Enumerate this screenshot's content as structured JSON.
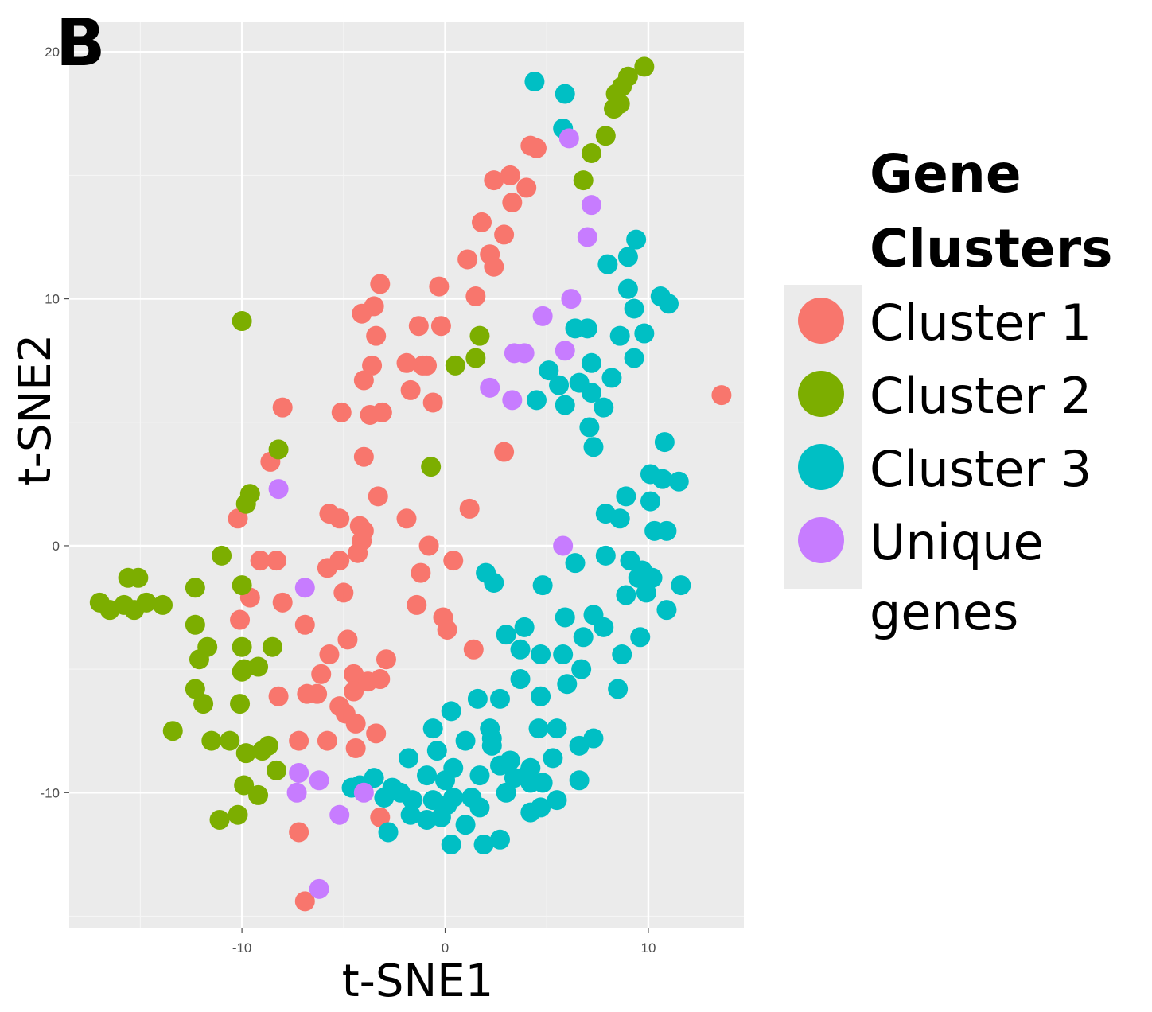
{
  "panel_label": "B",
  "chart_data": {
    "type": "scatter",
    "title": "",
    "xlabel": "t-SNE1",
    "ylabel": "t-SNE2",
    "xlim": [
      -18.5,
      14.7
    ],
    "ylim": [
      -15.5,
      21.2
    ],
    "xticks": [
      -10,
      0,
      10
    ],
    "yticks": [
      -10,
      0,
      10,
      20
    ],
    "xtick_labels": [
      "-10",
      "0",
      "10"
    ],
    "ytick_labels": [
      "-10",
      "0",
      "10",
      "20"
    ],
    "grid": true,
    "legend": {
      "title_lines": [
        "Gene",
        "Clusters"
      ],
      "position": "right",
      "entries": [
        {
          "label": "Cluster 1",
          "color": "#F8766D"
        },
        {
          "label": "Cluster 2",
          "color": "#7CAE00"
        },
        {
          "label": "Cluster 3",
          "color": "#00BFC4"
        },
        {
          "label": "Unique genes",
          "color": "#C77CFF"
        }
      ]
    },
    "series": [
      {
        "name": "Cluster 1",
        "color": "#F8766D",
        "points": [
          [
            4.2,
            16.2
          ],
          [
            4.5,
            16.1
          ],
          [
            2.4,
            14.8
          ],
          [
            3.2,
            15.0
          ],
          [
            4.0,
            14.5
          ],
          [
            3.3,
            13.9
          ],
          [
            1.8,
            13.1
          ],
          [
            2.9,
            12.6
          ],
          [
            2.2,
            11.8
          ],
          [
            2.4,
            11.3
          ],
          [
            1.1,
            11.6
          ],
          [
            1.5,
            10.1
          ],
          [
            -0.3,
            10.5
          ],
          [
            -3.2,
            10.6
          ],
          [
            -3.5,
            9.7
          ],
          [
            -4.1,
            9.4
          ],
          [
            -3.4,
            8.5
          ],
          [
            -1.3,
            8.9
          ],
          [
            -0.2,
            8.9
          ],
          [
            -1.9,
            7.4
          ],
          [
            -1.1,
            7.3
          ],
          [
            -0.9,
            7.3
          ],
          [
            -3.6,
            7.3
          ],
          [
            -4.0,
            6.7
          ],
          [
            -1.7,
            6.3
          ],
          [
            -0.6,
            5.8
          ],
          [
            -8.0,
            5.6
          ],
          [
            -5.1,
            5.4
          ],
          [
            -3.7,
            5.3
          ],
          [
            -3.1,
            5.4
          ],
          [
            2.9,
            3.8
          ],
          [
            -4.0,
            3.6
          ],
          [
            -8.6,
            3.4
          ],
          [
            -3.3,
            2.0
          ],
          [
            1.2,
            1.5
          ],
          [
            -5.7,
            1.3
          ],
          [
            -5.2,
            1.1
          ],
          [
            -4.2,
            0.8
          ],
          [
            -4.0,
            0.6
          ],
          [
            -10.2,
            1.1
          ],
          [
            -1.9,
            1.1
          ],
          [
            -4.1,
            0.2
          ],
          [
            -0.8,
            0.0
          ],
          [
            -4.3,
            -0.3
          ],
          [
            -5.2,
            -0.6
          ],
          [
            -5.8,
            -0.9
          ],
          [
            -8.3,
            -0.6
          ],
          [
            -9.1,
            -0.6
          ],
          [
            0.4,
            -0.6
          ],
          [
            -1.2,
            -1.1
          ],
          [
            -9.6,
            -2.1
          ],
          [
            -5.0,
            -1.9
          ],
          [
            -8.0,
            -2.3
          ],
          [
            -1.4,
            -2.4
          ],
          [
            -10.1,
            -3.0
          ],
          [
            -6.9,
            -3.2
          ],
          [
            -0.1,
            -2.9
          ],
          [
            0.1,
            -3.4
          ],
          [
            -4.8,
            -3.8
          ],
          [
            -5.7,
            -4.4
          ],
          [
            1.4,
            -4.2
          ],
          [
            -2.9,
            -4.6
          ],
          [
            -4.5,
            -5.2
          ],
          [
            -6.1,
            -5.2
          ],
          [
            -4.5,
            -5.9
          ],
          [
            -3.8,
            -5.5
          ],
          [
            -3.2,
            -5.4
          ],
          [
            -8.2,
            -6.1
          ],
          [
            -6.8,
            -6.0
          ],
          [
            -6.3,
            -6.0
          ],
          [
            -5.2,
            -6.5
          ],
          [
            -4.9,
            -6.8
          ],
          [
            -4.4,
            -7.2
          ],
          [
            -7.2,
            -7.9
          ],
          [
            -5.8,
            -7.9
          ],
          [
            -4.4,
            -8.2
          ],
          [
            -3.4,
            -7.6
          ],
          [
            -3.2,
            -11.0
          ],
          [
            -7.2,
            -11.6
          ],
          [
            -6.9,
            -14.4
          ],
          [
            13.6,
            6.1
          ]
        ]
      },
      {
        "name": "Cluster 2",
        "color": "#7CAE00",
        "points": [
          [
            9.8,
            19.4
          ],
          [
            9.0,
            19.0
          ],
          [
            8.7,
            18.6
          ],
          [
            8.4,
            18.3
          ],
          [
            8.6,
            17.9
          ],
          [
            8.3,
            17.7
          ],
          [
            7.9,
            16.6
          ],
          [
            7.2,
            15.9
          ],
          [
            6.8,
            14.8
          ],
          [
            1.7,
            8.5
          ],
          [
            1.5,
            7.6
          ],
          [
            0.5,
            7.3
          ],
          [
            -10.0,
            9.1
          ],
          [
            -8.2,
            3.9
          ],
          [
            -9.6,
            2.1
          ],
          [
            -9.8,
            1.7
          ],
          [
            -0.7,
            3.2
          ],
          [
            -11.0,
            -0.4
          ],
          [
            -10.0,
            -1.6
          ],
          [
            -15.6,
            -1.3
          ],
          [
            -15.1,
            -1.3
          ],
          [
            -17.0,
            -2.3
          ],
          [
            -16.5,
            -2.6
          ],
          [
            -15.8,
            -2.4
          ],
          [
            -15.3,
            -2.6
          ],
          [
            -14.7,
            -2.3
          ],
          [
            -13.9,
            -2.4
          ],
          [
            -12.3,
            -1.7
          ],
          [
            -12.3,
            -3.2
          ],
          [
            -11.7,
            -4.1
          ],
          [
            -12.1,
            -4.6
          ],
          [
            -10.0,
            -4.1
          ],
          [
            -8.5,
            -4.1
          ],
          [
            -10.0,
            -5.1
          ],
          [
            -9.9,
            -5.0
          ],
          [
            -9.2,
            -4.9
          ],
          [
            -12.3,
            -5.8
          ],
          [
            -11.9,
            -6.4
          ],
          [
            -10.1,
            -6.4
          ],
          [
            -13.4,
            -7.5
          ],
          [
            -11.5,
            -7.9
          ],
          [
            -10.6,
            -7.9
          ],
          [
            -9.8,
            -8.4
          ],
          [
            -9.0,
            -8.3
          ],
          [
            -8.7,
            -8.1
          ],
          [
            -8.3,
            -9.1
          ],
          [
            -9.9,
            -9.7
          ],
          [
            -9.2,
            -10.1
          ],
          [
            -11.1,
            -11.1
          ],
          [
            -10.2,
            -10.9
          ]
        ]
      },
      {
        "name": "Cluster 3",
        "color": "#00BFC4",
        "points": [
          [
            4.4,
            18.8
          ],
          [
            5.9,
            18.3
          ],
          [
            5.8,
            16.9
          ],
          [
            9.4,
            12.4
          ],
          [
            9.0,
            11.7
          ],
          [
            8.0,
            11.4
          ],
          [
            9.0,
            10.4
          ],
          [
            10.6,
            10.1
          ],
          [
            11.0,
            9.8
          ],
          [
            9.3,
            9.6
          ],
          [
            6.4,
            8.8
          ],
          [
            7.0,
            8.8
          ],
          [
            8.6,
            8.5
          ],
          [
            9.8,
            8.6
          ],
          [
            9.3,
            7.6
          ],
          [
            7.2,
            7.4
          ],
          [
            5.1,
            7.1
          ],
          [
            5.6,
            6.5
          ],
          [
            6.6,
            6.6
          ],
          [
            7.2,
            6.2
          ],
          [
            8.2,
            6.8
          ],
          [
            4.5,
            5.9
          ],
          [
            5.9,
            5.7
          ],
          [
            7.8,
            5.6
          ],
          [
            7.1,
            4.8
          ],
          [
            7.3,
            4.0
          ],
          [
            10.8,
            4.2
          ],
          [
            10.1,
            2.9
          ],
          [
            10.7,
            2.7
          ],
          [
            11.5,
            2.6
          ],
          [
            8.9,
            2.0
          ],
          [
            10.1,
            1.8
          ],
          [
            7.9,
            1.3
          ],
          [
            8.6,
            1.1
          ],
          [
            10.3,
            0.6
          ],
          [
            10.9,
            0.6
          ],
          [
            7.9,
            -0.4
          ],
          [
            9.1,
            -0.6
          ],
          [
            6.4,
            -0.7
          ],
          [
            9.7,
            -1.0
          ],
          [
            9.5,
            -1.3
          ],
          [
            10.2,
            -1.3
          ],
          [
            11.6,
            -1.6
          ],
          [
            9.9,
            -1.9
          ],
          [
            8.9,
            -2.0
          ],
          [
            2.0,
            -1.1
          ],
          [
            2.4,
            -1.5
          ],
          [
            4.8,
            -1.6
          ],
          [
            10.9,
            -2.6
          ],
          [
            7.3,
            -2.8
          ],
          [
            5.9,
            -2.9
          ],
          [
            7.8,
            -3.3
          ],
          [
            3.9,
            -3.3
          ],
          [
            3.0,
            -3.6
          ],
          [
            3.7,
            -4.2
          ],
          [
            6.8,
            -3.7
          ],
          [
            9.6,
            -3.7
          ],
          [
            5.8,
            -4.4
          ],
          [
            8.7,
            -4.4
          ],
          [
            4.7,
            -4.4
          ],
          [
            6.7,
            -5.0
          ],
          [
            3.7,
            -5.4
          ],
          [
            6.0,
            -5.6
          ],
          [
            4.7,
            -6.1
          ],
          [
            8.5,
            -5.8
          ],
          [
            2.7,
            -6.2
          ],
          [
            1.6,
            -6.2
          ],
          [
            0.3,
            -6.7
          ],
          [
            2.2,
            -7.4
          ],
          [
            2.3,
            -7.8
          ],
          [
            4.6,
            -7.4
          ],
          [
            5.5,
            -7.4
          ],
          [
            -0.6,
            -7.4
          ],
          [
            1.0,
            -7.9
          ],
          [
            2.3,
            -8.1
          ],
          [
            6.6,
            -8.1
          ],
          [
            7.3,
            -7.8
          ],
          [
            -0.4,
            -8.3
          ],
          [
            -1.8,
            -8.6
          ],
          [
            2.7,
            -8.9
          ],
          [
            3.2,
            -8.7
          ],
          [
            4.2,
            -9.0
          ],
          [
            5.3,
            -8.6
          ],
          [
            0.4,
            -9.0
          ],
          [
            -0.9,
            -9.3
          ],
          [
            1.7,
            -9.3
          ],
          [
            3.4,
            -9.4
          ],
          [
            4.0,
            -9.3
          ],
          [
            4.2,
            -9.6
          ],
          [
            4.8,
            -9.6
          ],
          [
            6.6,
            -9.5
          ],
          [
            -2.6,
            -9.8
          ],
          [
            -3.5,
            -9.4
          ],
          [
            0.0,
            -9.5
          ],
          [
            -4.2,
            -9.7
          ],
          [
            -4.6,
            -9.8
          ],
          [
            -3.0,
            -10.2
          ],
          [
            -2.2,
            -10.0
          ],
          [
            -1.6,
            -10.3
          ],
          [
            -0.6,
            -10.3
          ],
          [
            0.4,
            -10.2
          ],
          [
            0.1,
            -10.5
          ],
          [
            1.3,
            -10.2
          ],
          [
            1.7,
            -10.6
          ],
          [
            3.0,
            -10.0
          ],
          [
            5.5,
            -10.3
          ],
          [
            4.7,
            -10.6
          ],
          [
            4.2,
            -10.8
          ],
          [
            -1.7,
            -10.9
          ],
          [
            -0.9,
            -11.1
          ],
          [
            -0.2,
            -11.0
          ],
          [
            1.0,
            -11.3
          ],
          [
            -2.8,
            -11.6
          ],
          [
            0.3,
            -12.1
          ],
          [
            1.9,
            -12.1
          ],
          [
            2.7,
            -11.9
          ]
        ]
      },
      {
        "name": "Unique genes",
        "color": "#C77CFF",
        "points": [
          [
            6.1,
            16.5
          ],
          [
            7.2,
            13.8
          ],
          [
            7.0,
            12.5
          ],
          [
            6.2,
            10.0
          ],
          [
            4.8,
            9.3
          ],
          [
            3.4,
            7.8
          ],
          [
            3.9,
            7.8
          ],
          [
            5.9,
            7.9
          ],
          [
            2.2,
            6.4
          ],
          [
            3.3,
            5.9
          ],
          [
            -8.2,
            2.3
          ],
          [
            5.8,
            0.0
          ],
          [
            -6.9,
            -1.7
          ],
          [
            -7.2,
            -9.2
          ],
          [
            -6.2,
            -9.5
          ],
          [
            -7.3,
            -10.0
          ],
          [
            -4.0,
            -10.0
          ],
          [
            -5.2,
            -10.9
          ],
          [
            -6.2,
            -13.9
          ]
        ]
      }
    ]
  }
}
